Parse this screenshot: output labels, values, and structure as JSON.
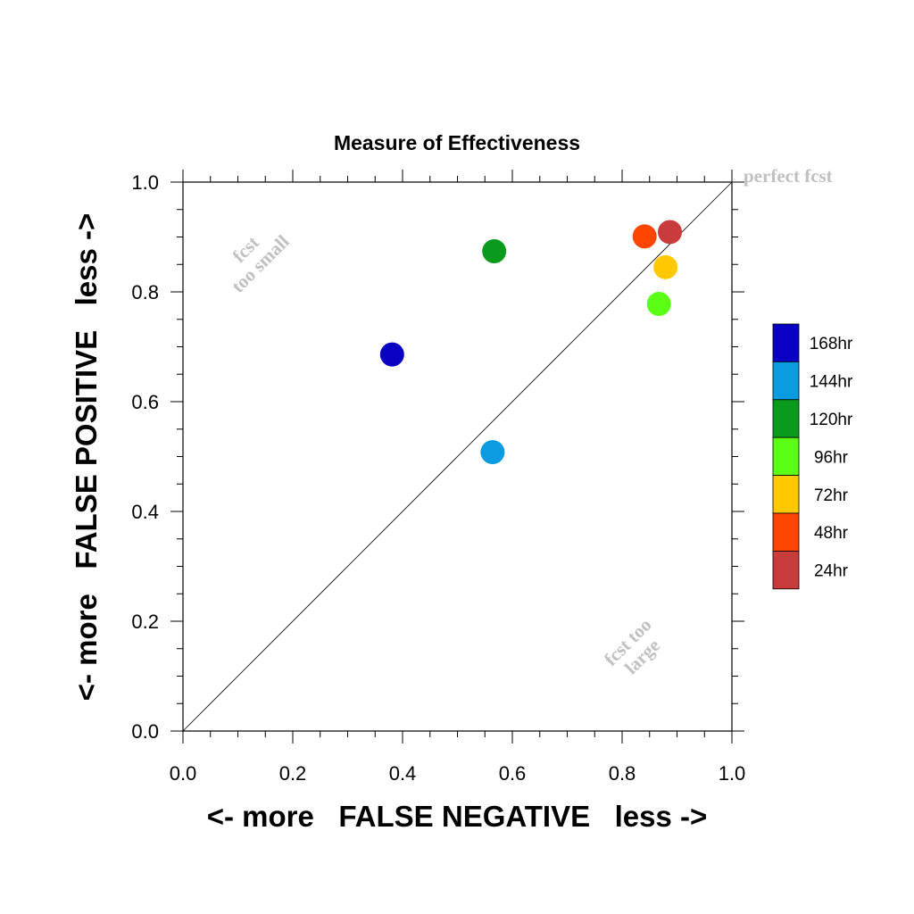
{
  "chart_data": {
    "type": "scatter",
    "title": "Measure of Effectiveness",
    "xlabel": "<- more   FALSE NEGATIVE   less ->",
    "ylabel": "<- more   FALSE POSITIVE   less ->",
    "xlim": [
      0,
      1
    ],
    "ylim": [
      0,
      1
    ],
    "xticks": [
      "0.0",
      "0.2",
      "0.4",
      "0.6",
      "0.8",
      "1.0"
    ],
    "yticks": [
      "0.0",
      "0.2",
      "0.4",
      "0.6",
      "0.8",
      "1.0"
    ],
    "grid": false,
    "diagonal_line": true,
    "legend_position": "right",
    "annotations": {
      "perfect": "perfect fcst",
      "too_small_1": "fcst",
      "too_small_2": "too small",
      "too_large_1": "fcst too",
      "too_large_2": "large"
    },
    "points": [
      {
        "label": "168hr",
        "x": 0.381,
        "y": 0.686,
        "color": "#0a00c4"
      },
      {
        "label": "144hr",
        "x": 0.564,
        "y": 0.508,
        "color": "#0a9be0"
      },
      {
        "label": "120hr",
        "x": 0.567,
        "y": 0.874,
        "color": "#0a9b1e"
      },
      {
        "label": "96hr",
        "x": 0.867,
        "y": 0.778,
        "color": "#5aff14"
      },
      {
        "label": "72hr",
        "x": 0.879,
        "y": 0.845,
        "color": "#ffc800"
      },
      {
        "label": "48hr",
        "x": 0.841,
        "y": 0.901,
        "color": "#ff4600"
      },
      {
        "label": "24hr",
        "x": 0.887,
        "y": 0.909,
        "color": "#c83c3c"
      }
    ]
  }
}
